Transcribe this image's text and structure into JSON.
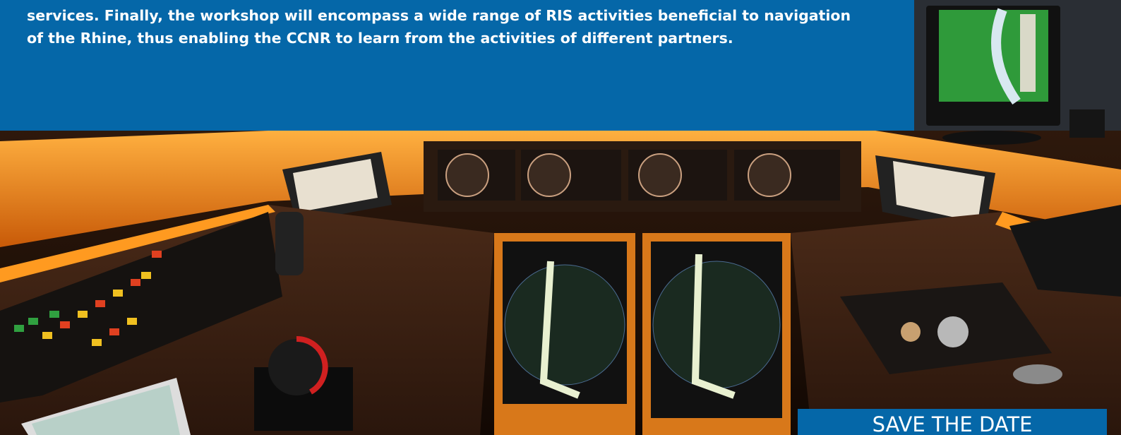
{
  "intro": {
    "lines": [
      "services. Finally, the workshop will encompass a wide range of RIS activities beneficial to navigation",
      "of the Rhine, thus enabling the CCNR to learn from the activities of different partners."
    ]
  },
  "banner": {
    "label": "SAVE THE DATE"
  }
}
